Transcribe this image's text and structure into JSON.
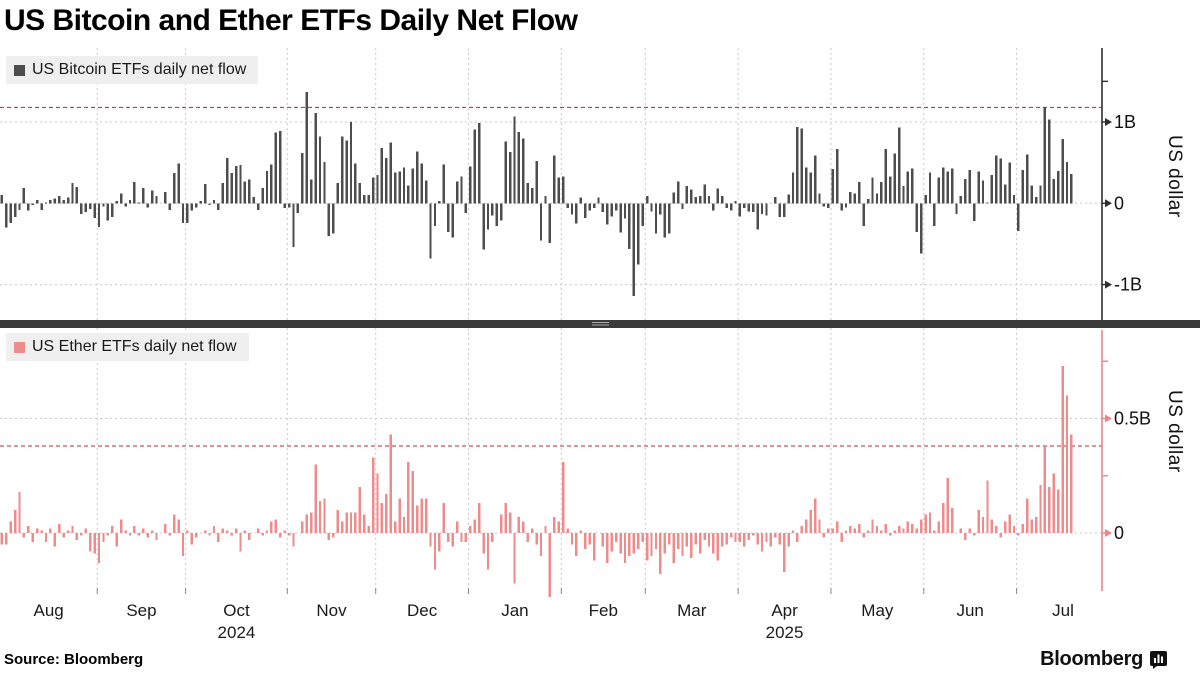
{
  "title": "US Bitcoin and Ether ETFs Daily Net Flow",
  "source": "Source:  Bloomberg",
  "brand": {
    "logo_text": "Bloomberg"
  },
  "colors": {
    "grid": "#c9c9c9",
    "reference_line": "#c42222",
    "divider": "#3a3a3a",
    "legend_bg": "#efefef",
    "month_tick": "#888888"
  },
  "x_axis": {
    "months": [
      {
        "label": "Aug",
        "days": 22
      },
      {
        "label": "Sep",
        "days": 20
      },
      {
        "label": "Oct",
        "days": 23,
        "year": "2024"
      },
      {
        "label": "Nov",
        "days": 20
      },
      {
        "label": "Dec",
        "days": 21
      },
      {
        "label": "Jan",
        "days": 21
      },
      {
        "label": "Feb",
        "days": 19
      },
      {
        "label": "Mar",
        "days": 21
      },
      {
        "label": "Apr",
        "days": 21,
        "year": "2025"
      },
      {
        "label": "May",
        "days": 21
      },
      {
        "label": "Jun",
        "days": 21
      },
      {
        "label": "Jul",
        "days": 13
      }
    ]
  },
  "chart_data": [
    {
      "type": "bar",
      "title": "US Bitcoin ETFs daily net flow",
      "ylabel": "US dollar",
      "unit": "billions USD",
      "bar_color": "#4d4d4d",
      "axis_color": "#2f2f2f",
      "ylim": [
        -1.45,
        1.91
      ],
      "yticks": [
        {
          "label": "1B",
          "value": 1
        },
        {
          "label": "0",
          "value": 0
        },
        {
          "label": "-1B",
          "value": -1
        }
      ],
      "minor_ticks": [
        1.5
      ],
      "reference_line": 1.18,
      "values": [
        0.1,
        -0.3,
        -0.24,
        -0.17,
        -0.08,
        0.19,
        -0.09,
        -0.02,
        0.04,
        -0.08,
        0.01,
        0.04,
        0.06,
        0.09,
        0.04,
        0.07,
        0.25,
        0.2,
        -0.13,
        -0.11,
        -0.07,
        -0.18,
        -0.29,
        -0.04,
        -0.21,
        -0.17,
        0.03,
        0.12,
        -0.04,
        0.04,
        0.26,
        0.01,
        0.19,
        -0.05,
        0.16,
        0.09,
        0.0,
        0.14,
        -0.08,
        0.37,
        0.49,
        -0.24,
        -0.24,
        -0.09,
        -0.05,
        0.03,
        0.24,
        -0.02,
        0.04,
        -0.08,
        0.25,
        0.56,
        0.37,
        0.46,
        0.47,
        0.27,
        0.29,
        0.08,
        -0.08,
        0.19,
        0.4,
        0.48,
        0.87,
        0.89,
        -0.06,
        -0.05,
        -0.54,
        -0.12,
        0.62,
        1.37,
        0.29,
        1.11,
        0.82,
        0.51,
        -0.4,
        -0.37,
        0.25,
        0.82,
        0.77,
        1.0,
        0.49,
        0.25,
        0.1,
        0.1,
        0.32,
        0.35,
        0.68,
        0.56,
        0.75,
        0.38,
        0.39,
        0.44,
        0.22,
        0.43,
        0.64,
        0.49,
        0.28,
        -0.68,
        -0.28,
        0.03,
        0.48,
        -0.35,
        -0.42,
        0.27,
        0.33,
        -0.12,
        0.45,
        0.91,
        0.99,
        -0.57,
        -0.32,
        -0.15,
        -0.28,
        -0.21,
        0.76,
        0.63,
        1.07,
        0.88,
        0.8,
        0.25,
        0.19,
        0.52,
        -0.46,
        0.09,
        -0.49,
        0.59,
        0.32,
        0.33,
        -0.06,
        -0.14,
        -0.25,
        0.07,
        -0.18,
        -0.09,
        -0.06,
        0.07,
        -0.11,
        -0.26,
        -0.16,
        -0.09,
        -0.36,
        -0.19,
        -0.56,
        -1.14,
        -0.75,
        -0.28,
        0.09,
        -0.1,
        -0.37,
        -0.14,
        -0.42,
        -0.37,
        0.13,
        0.27,
        -0.07,
        0.21,
        0.17,
        0.08,
        0.09,
        0.23,
        0.09,
        -0.09,
        0.18,
        0.09,
        -0.06,
        -0.09,
        0.03,
        -0.16,
        -0.06,
        -0.1,
        -0.11,
        -0.32,
        -0.13,
        -0.15,
        0.0,
        0.08,
        -0.17,
        -0.17,
        0.11,
        0.38,
        0.94,
        0.92,
        0.44,
        0.38,
        0.59,
        0.12,
        -0.04,
        -0.06,
        0.42,
        0.67,
        -0.09,
        -0.05,
        0.14,
        0.12,
        0.26,
        -0.28,
        0.05,
        0.32,
        0.12,
        0.26,
        0.67,
        0.33,
        0.61,
        0.93,
        0.21,
        0.39,
        0.43,
        -0.35,
        -0.62,
        0.1,
        0.38,
        -0.28,
        0.32,
        0.44,
        0.39,
        0.43,
        -0.13,
        0.09,
        0.3,
        0.41,
        -0.22,
        0.39,
        0.28,
        0.01,
        0.35,
        0.59,
        0.55,
        0.23,
        0.5,
        0.1,
        -0.34,
        0.41,
        0.6,
        0.22,
        0.08,
        0.22,
        1.18,
        1.03,
        0.3,
        0.4,
        0.79,
        0.51,
        0.36
      ]
    },
    {
      "type": "bar",
      "title": "US Ether ETFs daily net flow",
      "ylabel": "US dollar",
      "unit": "billions USD",
      "bar_color": "#ef8b8b",
      "axis_color": "#ee8585",
      "ylim": [
        -0.25,
        0.89
      ],
      "yticks": [
        {
          "label": "0.5B",
          "value": 0.5
        },
        {
          "label": "0",
          "value": 0
        }
      ],
      "minor_ticks": [
        0.75,
        0.25
      ],
      "reference_line": 0.38,
      "values": [
        -0.05,
        -0.05,
        0.05,
        0.1,
        0.18,
        -0.02,
        0.03,
        -0.04,
        0.02,
        0.01,
        -0.04,
        0.02,
        -0.06,
        0.04,
        -0.02,
        0.01,
        0.03,
        -0.03,
        -0.01,
        0.02,
        -0.08,
        -0.09,
        -0.13,
        -0.04,
        -0.01,
        0.03,
        -0.06,
        0.06,
        0.01,
        -0.01,
        0.03,
        -0.01,
        0.02,
        -0.02,
        0.01,
        -0.03,
        0.0,
        0.04,
        -0.01,
        0.08,
        0.06,
        -0.1,
        0.01,
        -0.05,
        -0.02,
        0.0,
        0.01,
        -0.01,
        0.03,
        -0.04,
        0.02,
        0.01,
        -0.01,
        0.02,
        -0.08,
        0.01,
        -0.03,
        0.0,
        0.02,
        -0.01,
        0.01,
        0.05,
        0.06,
        -0.02,
        0.01,
        -0.01,
        -0.06,
        0.0,
        0.05,
        0.08,
        0.09,
        0.3,
        0.14,
        0.15,
        -0.03,
        -0.02,
        0.1,
        0.05,
        0.09,
        0.09,
        0.09,
        0.2,
        0.08,
        0.03,
        0.33,
        0.26,
        0.13,
        0.17,
        0.43,
        0.05,
        0.15,
        0.07,
        0.31,
        0.27,
        0.12,
        0.15,
        0.15,
        -0.06,
        -0.16,
        -0.08,
        0.13,
        -0.04,
        -0.06,
        0.05,
        -0.04,
        -0.04,
        0.03,
        0.06,
        0.13,
        -0.09,
        -0.16,
        -0.04,
        0.0,
        0.08,
        0.13,
        0.09,
        -0.22,
        0.07,
        0.05,
        -0.04,
        0.02,
        -0.05,
        -0.1,
        0.03,
        -0.28,
        0.07,
        0.05,
        0.31,
        0.02,
        -0.05,
        -0.1,
        0.01,
        -0.07,
        -0.05,
        -0.12,
        0.0,
        -0.06,
        -0.13,
        -0.08,
        -0.04,
        -0.09,
        -0.13,
        -0.1,
        -0.09,
        -0.07,
        -0.04,
        -0.12,
        -0.1,
        -0.07,
        -0.18,
        -0.09,
        -0.05,
        -0.13,
        -0.07,
        -0.1,
        -0.06,
        -0.11,
        -0.05,
        -0.09,
        -0.03,
        -0.06,
        -0.09,
        -0.12,
        -0.06,
        -0.05,
        -0.02,
        -0.04,
        -0.04,
        -0.06,
        -0.03,
        -0.01,
        -0.05,
        -0.08,
        -0.04,
        -0.06,
        -0.02,
        -0.05,
        -0.17,
        -0.06,
        0.01,
        -0.04,
        0.03,
        0.06,
        0.1,
        0.15,
        0.06,
        -0.02,
        0.02,
        0.02,
        0.05,
        -0.04,
        0.01,
        0.03,
        0.02,
        0.04,
        -0.02,
        0.01,
        0.06,
        0.03,
        0.01,
        0.04,
        -0.01,
        0.01,
        0.03,
        0.02,
        0.05,
        0.04,
        0.02,
        0.06,
        0.08,
        0.09,
        0.01,
        0.05,
        0.13,
        0.24,
        0.11,
        0.0,
        0.02,
        -0.03,
        0.02,
        -0.01,
        0.1,
        0.07,
        0.23,
        0.06,
        0.03,
        -0.02,
        0.05,
        0.08,
        0.03,
        -0.01,
        0.04,
        0.15,
        0.06,
        0.07,
        0.21,
        0.38,
        0.2,
        0.26,
        0.19,
        0.73,
        0.6,
        0.43
      ]
    }
  ]
}
